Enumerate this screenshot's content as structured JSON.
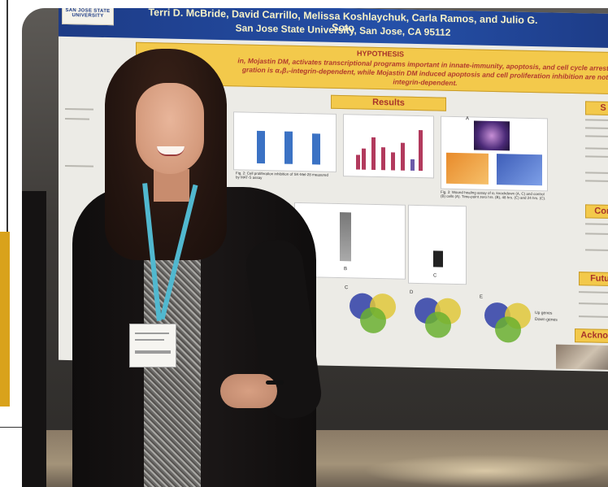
{
  "poster": {
    "logo_text": "SAN JOSE STATE UNIVERSITY",
    "authors": "Terri D. McBride, David Carrillo, Melissa Koshlaychuk, Carla Ramos, and Julio G. Soto",
    "affiliation": "San Jose State University, San Jose, CA 95112",
    "hypothesis": {
      "title": "HYPOTHESIS",
      "line1": "in, Mojastin DM, activates transcriptional programs important in innate-immunity, apoptosis, and cell cycle arrest i",
      "line2": "gration is α₂β₁-integrin-dependent, while Mojastin DM induced apoptosis and cell proliferation inhibition are not",
      "line3": "integrin-dependent."
    },
    "sections": {
      "results": "Results",
      "right_top": "S",
      "conclusions": "Con",
      "future": "Futu",
      "acknowledgements": "Acknow"
    },
    "panel_labels": {
      "a": "A",
      "b": "B",
      "c": "C",
      "d": "D",
      "e": "E"
    },
    "captions": {
      "fig2": "Fig. 2: Cell proliferation inhibition of SK-Mel-28 measured by MAT-S assay",
      "fig3": "Fig. 3: Wound healing assay of α₂ knockdown (A, C) and control (B) cells (A). Time-point zero hrs. (B), 48 hrs. (C) and 24 hrs. (C)."
    },
    "venn_labels": [
      "Up genes",
      "Down genes"
    ]
  },
  "colors": {
    "poster_header": "#2550a8",
    "section_tab": "#f3c94b",
    "bar_blue": "#3b72c4",
    "bar_red": "#b23a5d",
    "lanyard": "#51b8cf"
  }
}
